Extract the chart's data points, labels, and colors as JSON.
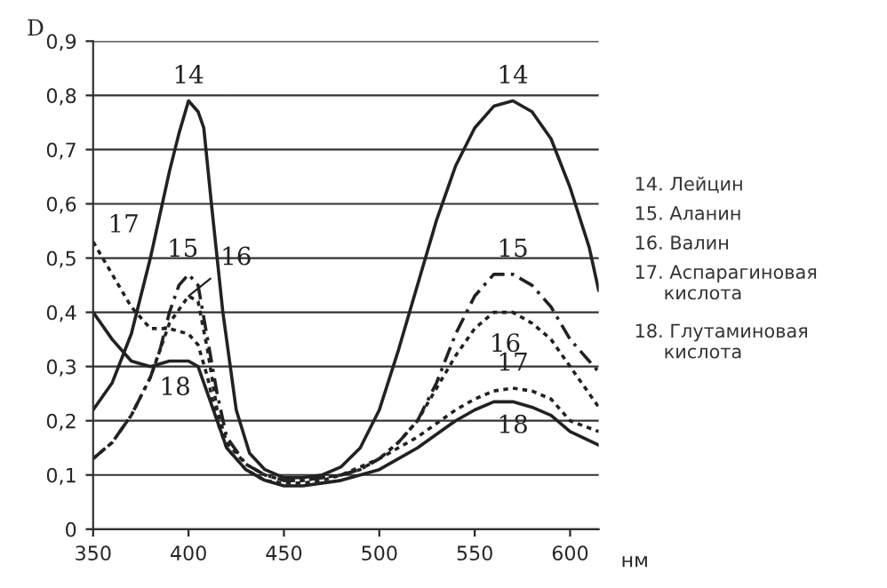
{
  "chart_data": {
    "type": "line",
    "xlabel": "нм",
    "ylabel": "D",
    "xlim": [
      350,
      615
    ],
    "ylim": [
      0,
      0.9
    ],
    "xticks": [
      350,
      400,
      450,
      500,
      550,
      600
    ],
    "yticks": [
      0,
      {
        "value": 0.1,
        "label": "0,1"
      },
      {
        "value": 0.2,
        "label": "0,2"
      },
      {
        "value": 0.3,
        "label": "0,3"
      },
      {
        "value": 0.4,
        "label": "0,4"
      },
      {
        "value": 0.5,
        "label": "0,5"
      },
      {
        "value": 0.6,
        "label": "0,6"
      },
      {
        "value": 0.7,
        "label": "0,7"
      },
      {
        "value": 0.8,
        "label": "0,8"
      },
      {
        "value": 0.9,
        "label": "0,9"
      }
    ],
    "grid": "y",
    "legend": false,
    "series": [
      {
        "name": "14",
        "color": "#222222",
        "line_style": "solid",
        "x": [
          350,
          360,
          370,
          380,
          390,
          395,
          400,
          405,
          408,
          412,
          418,
          425,
          432,
          440,
          450,
          460,
          470,
          480,
          490,
          500,
          510,
          520,
          530,
          540,
          550,
          560,
          570,
          580,
          590,
          600,
          610,
          615
        ],
        "values": [
          0.22,
          0.27,
          0.36,
          0.5,
          0.66,
          0.73,
          0.79,
          0.77,
          0.74,
          0.6,
          0.4,
          0.22,
          0.14,
          0.11,
          0.095,
          0.095,
          0.1,
          0.115,
          0.15,
          0.22,
          0.33,
          0.45,
          0.57,
          0.67,
          0.74,
          0.78,
          0.79,
          0.77,
          0.72,
          0.63,
          0.52,
          0.44
        ]
      },
      {
        "name": "15",
        "color": "#222222",
        "line_style": "dashed",
        "x": [
          350,
          360,
          370,
          380,
          385,
          390,
          395,
          400,
          405,
          410,
          415,
          420,
          430,
          440,
          450,
          460,
          470,
          480,
          490,
          500,
          510,
          520,
          530,
          540,
          550,
          560,
          570,
          580,
          590,
          600,
          610,
          615
        ],
        "values": [
          0.13,
          0.16,
          0.21,
          0.28,
          0.33,
          0.4,
          0.45,
          0.47,
          0.45,
          0.35,
          0.25,
          0.17,
          0.12,
          0.1,
          0.09,
          0.09,
          0.095,
          0.1,
          0.11,
          0.13,
          0.16,
          0.2,
          0.27,
          0.36,
          0.43,
          0.47,
          0.47,
          0.45,
          0.41,
          0.35,
          0.31,
          0.29
        ]
      },
      {
        "name": "16",
        "color": "#222222",
        "line_style": "dotted",
        "x": [
          350,
          360,
          370,
          380,
          390,
          400,
          405,
          410,
          415,
          420,
          430,
          440,
          450,
          460,
          470,
          480,
          490,
          500,
          510,
          520,
          530,
          540,
          550,
          560,
          570,
          580,
          590,
          600,
          610,
          615
        ],
        "values": [
          0.13,
          0.16,
          0.21,
          0.28,
          0.38,
          0.43,
          0.42,
          0.33,
          0.22,
          0.16,
          0.12,
          0.1,
          0.09,
          0.09,
          0.095,
          0.1,
          0.11,
          0.13,
          0.16,
          0.2,
          0.26,
          0.32,
          0.37,
          0.4,
          0.4,
          0.38,
          0.35,
          0.3,
          0.25,
          0.225
        ]
      },
      {
        "name": "17",
        "color": "#222222",
        "line_style": "dotted",
        "x": [
          350,
          360,
          370,
          380,
          390,
          400,
          405,
          410,
          415,
          420,
          430,
          440,
          450,
          460,
          470,
          480,
          500,
          520,
          540,
          550,
          560,
          570,
          580,
          590,
          600,
          615
        ],
        "values": [
          0.53,
          0.47,
          0.41,
          0.37,
          0.37,
          0.36,
          0.34,
          0.28,
          0.2,
          0.15,
          0.11,
          0.09,
          0.085,
          0.085,
          0.09,
          0.1,
          0.13,
          0.17,
          0.22,
          0.24,
          0.255,
          0.26,
          0.255,
          0.24,
          0.2,
          0.18
        ]
      },
      {
        "name": "18",
        "color": "#222222",
        "line_style": "solid",
        "x": [
          350,
          360,
          370,
          380,
          390,
          400,
          405,
          410,
          415,
          420,
          430,
          440,
          450,
          460,
          470,
          480,
          500,
          520,
          540,
          550,
          560,
          570,
          580,
          590,
          600,
          615
        ],
        "values": [
          0.4,
          0.35,
          0.31,
          0.3,
          0.31,
          0.31,
          0.3,
          0.25,
          0.2,
          0.15,
          0.11,
          0.09,
          0.08,
          0.08,
          0.085,
          0.09,
          0.11,
          0.15,
          0.2,
          0.22,
          0.235,
          0.235,
          0.225,
          0.21,
          0.18,
          0.155
        ]
      }
    ],
    "annotations": [
      "14. Лейцин",
      "15. Аланин",
      "16. Валин",
      "17. Аспарагиновая\n     кислота",
      "18. Глутаминовая\n     кислота"
    ]
  }
}
